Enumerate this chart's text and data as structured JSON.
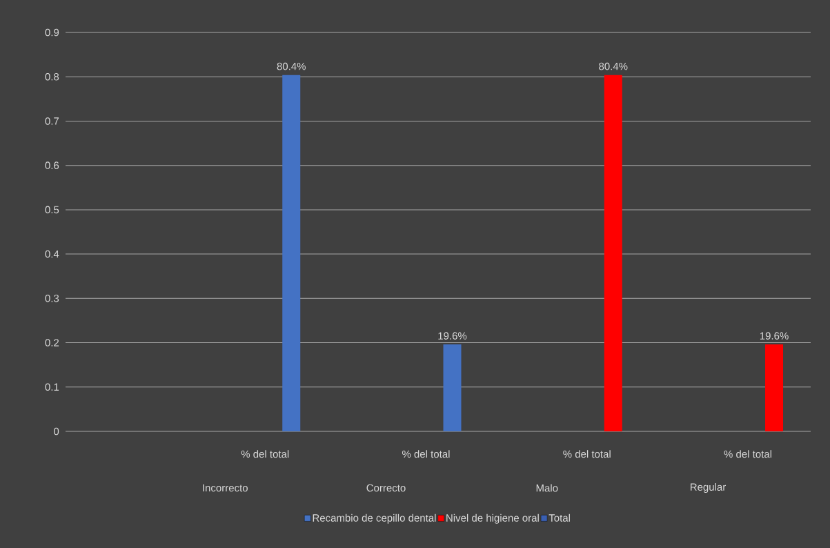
{
  "chart_data": {
    "type": "bar",
    "categories": [
      "% del total",
      "% del total",
      "% del total",
      "% del total"
    ],
    "series": [
      {
        "name": "Recambio de cepillo dental",
        "color": "#4472c4",
        "values": [
          0.804,
          0.196,
          null,
          null
        ],
        "value_labels": [
          "80.4%",
          "19.6%",
          null,
          null
        ]
      },
      {
        "name": "Nivel de higiene oral",
        "color": "#ff0000",
        "values": [
          null,
          null,
          0.804,
          0.196
        ],
        "value_labels": [
          null,
          null,
          "80.4%",
          "19.6%"
        ]
      },
      {
        "name": "Total",
        "color": "#3a5fb0",
        "values": [
          null,
          null,
          null,
          null
        ]
      }
    ],
    "annotations": [
      "Incorrecto",
      "Correcto",
      "Malo",
      "Regular"
    ],
    "ylim": [
      0,
      0.9
    ],
    "yticks": [
      0,
      0.1,
      0.2,
      0.3,
      0.4,
      0.5,
      0.6,
      0.7,
      0.8,
      0.9
    ],
    "grid": "y",
    "legend": "bottom"
  }
}
